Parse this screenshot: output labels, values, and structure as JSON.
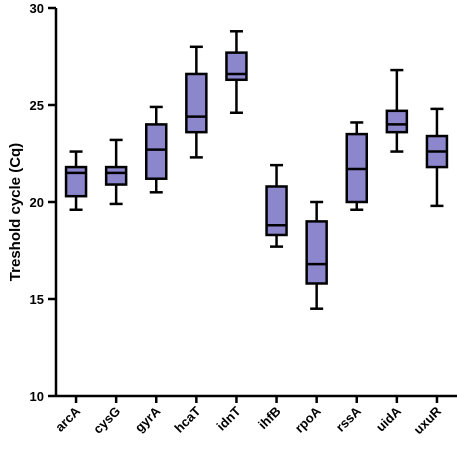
{
  "chart_data": {
    "type": "box",
    "ylabel": "Treshold cycle (Cq)",
    "xlabel": "",
    "ylim": [
      10,
      30
    ],
    "yticks": [
      10,
      15,
      20,
      25,
      30
    ],
    "box_color": "#8c86cc",
    "categories": [
      "arcA",
      "cysG",
      "gyrA",
      "hcaT",
      "idnT",
      "ihfB",
      "rpoA",
      "rssA",
      "uidA",
      "uxuR"
    ],
    "boxes": [
      {
        "min": 19.6,
        "q1": 20.3,
        "median": 21.5,
        "q3": 21.8,
        "max": 22.6
      },
      {
        "min": 19.9,
        "q1": 20.9,
        "median": 21.5,
        "q3": 21.8,
        "max": 23.2
      },
      {
        "min": 20.5,
        "q1": 21.2,
        "median": 22.7,
        "q3": 24.0,
        "max": 24.9
      },
      {
        "min": 22.3,
        "q1": 23.6,
        "median": 24.4,
        "q3": 26.6,
        "max": 28.0
      },
      {
        "min": 24.6,
        "q1": 26.3,
        "median": 26.6,
        "q3": 27.7,
        "max": 28.8
      },
      {
        "min": 17.7,
        "q1": 18.3,
        "median": 18.8,
        "q3": 20.8,
        "max": 21.9
      },
      {
        "min": 14.5,
        "q1": 15.8,
        "median": 16.8,
        "q3": 19.0,
        "max": 20.0
      },
      {
        "min": 19.6,
        "q1": 20.0,
        "median": 21.7,
        "q3": 23.5,
        "max": 24.1
      },
      {
        "min": 22.6,
        "q1": 23.6,
        "median": 24.0,
        "q3": 24.7,
        "max": 26.8
      },
      {
        "min": 19.8,
        "q1": 21.8,
        "median": 22.6,
        "q3": 23.4,
        "max": 24.8
      }
    ]
  }
}
